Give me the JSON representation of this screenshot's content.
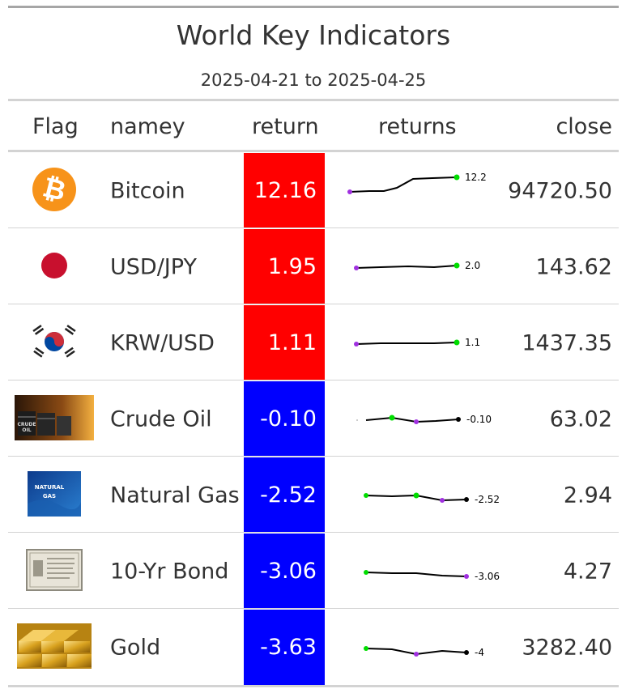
{
  "table": {
    "title": "World Key Indicators",
    "subtitle": "2025-04-21 to 2025-04-25",
    "columns": {
      "flag": "Flag",
      "name": "namey",
      "return": "return",
      "returns": "returns",
      "close": "close"
    },
    "colors": {
      "positive": "#ff0000",
      "negative": "#0000ff",
      "spark_line": "#000000",
      "spark_high": "#00dd00",
      "spark_low": "#a030e0"
    },
    "rows": [
      {
        "icon": "bitcoin-icon",
        "name": "Bitcoin",
        "return": "12.16",
        "return_sign": "positive",
        "spark_label": "12.2",
        "close": "94720.50"
      },
      {
        "icon": "japan-flag-icon",
        "name": "USD/JPY",
        "return": "1.95",
        "return_sign": "positive",
        "spark_label": "2.0",
        "close": "143.62"
      },
      {
        "icon": "korea-flag-icon",
        "name": "KRW/USD",
        "return": "1.11",
        "return_sign": "positive",
        "spark_label": "1.1",
        "close": "1437.35"
      },
      {
        "icon": "crude-oil-image",
        "name": "Crude Oil",
        "return": "-0.10",
        "return_sign": "negative",
        "spark_label": "-0.10",
        "close": "63.02"
      },
      {
        "icon": "natural-gas-image",
        "name": "Natural Gas",
        "return": "-2.52",
        "return_sign": "negative",
        "spark_label": "-2.52",
        "close": "2.94"
      },
      {
        "icon": "bond-certificate-image",
        "name": "10-Yr Bond",
        "return": "-3.06",
        "return_sign": "negative",
        "spark_label": "-3.06",
        "close": "4.27"
      },
      {
        "icon": "gold-bars-image",
        "name": "Gold",
        "return": "-3.63",
        "return_sign": "negative",
        "spark_label": "-4",
        "close": "3282.40"
      }
    ]
  },
  "flag_images": {
    "natural_gas_text": [
      "NATURAL",
      "GAS"
    ],
    "crude_oil_text": "CRUDE OIL"
  }
}
